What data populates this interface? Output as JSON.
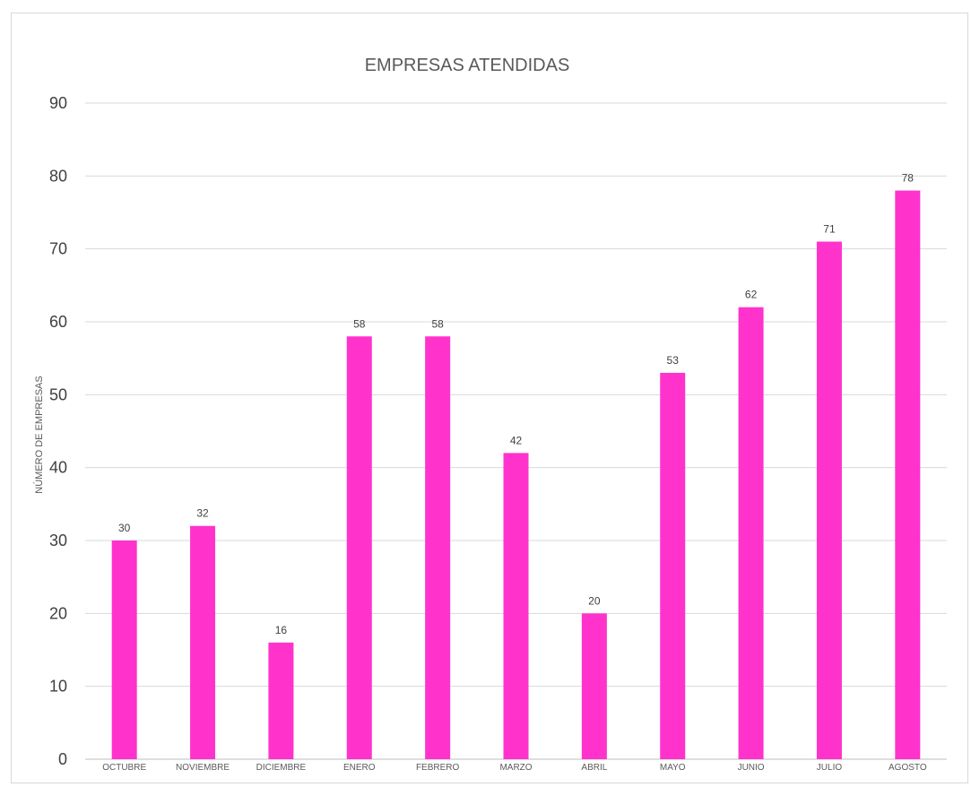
{
  "chart_data": {
    "type": "bar",
    "title": "EMPRESAS ATENDIDAS",
    "ylabel": "NÚMERO DE EMPRESAS",
    "xlabel": "",
    "categories": [
      "OCTUBRE",
      "NOVIEMBRE",
      "DICIEMBRE",
      "ENERO",
      "FEBRERO",
      "MARZO",
      "ABRIL",
      "MAYO",
      "JUNIO",
      "JULIO",
      "AGOSTO"
    ],
    "values": [
      30,
      32,
      16,
      58,
      58,
      42,
      20,
      53,
      62,
      71,
      78
    ],
    "ylim": [
      0,
      90
    ],
    "yticks": [
      0,
      10,
      20,
      30,
      40,
      50,
      60,
      70,
      80,
      90
    ],
    "grid": true,
    "data_labels": true,
    "bar_color": "#ff33cc"
  }
}
